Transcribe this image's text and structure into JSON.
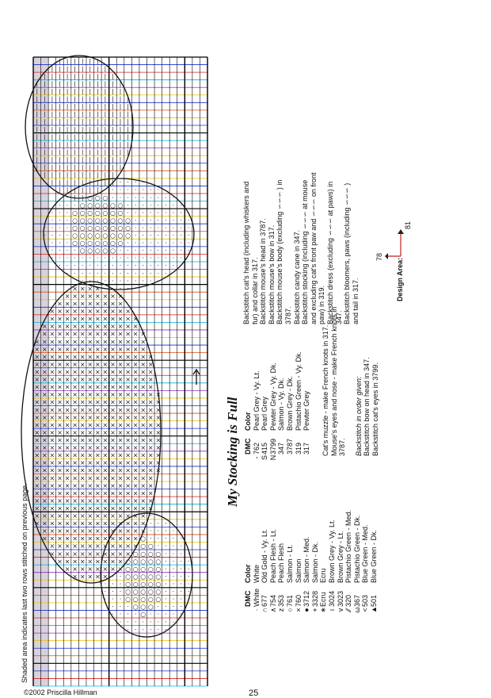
{
  "page_number": "25",
  "copyright": "©2002 Priscilla Hillman",
  "shaded_note": "Shaded area indicates last two rows stitched on previous page.",
  "title": "My Stocking is Full",
  "legend_headers": {
    "dmc": "DMC",
    "color": "Color"
  },
  "legend_left": [
    {
      "sym": "·",
      "dmc": "White",
      "color": "White"
    },
    {
      "sym": "∩",
      "dmc": "677",
      "color": "Old Gold - Vy. Lt."
    },
    {
      "sym": "∧",
      "dmc": "754",
      "color": "Peach Flesh - Lt."
    },
    {
      "sym": "z",
      "dmc": "353",
      "color": "Peach Flesh"
    },
    {
      "sym": "○",
      "dmc": "761",
      "color": "Salmon - Lt."
    },
    {
      "sym": "×",
      "dmc": "760",
      "color": "Salmon"
    },
    {
      "sym": "●",
      "dmc": "3712",
      "color": "Salmon - Med."
    },
    {
      "sym": "+",
      "dmc": "3328",
      "color": "Salmon - Dk."
    },
    {
      "sym": "∗",
      "dmc": "Ecru",
      "color": "Ecru"
    },
    {
      "sym": "ı",
      "dmc": "3024",
      "color": "Brown Grey - Vy. Lt."
    },
    {
      "sym": "v",
      "dmc": "3023",
      "color": "Brown Grey - Lt."
    },
    {
      "sym": "⁄⁄",
      "dmc": "320",
      "color": "Pistachio Green - Med."
    },
    {
      "sym": "ω",
      "dmc": "367",
      "color": "Pistachio Green - Dk."
    },
    {
      "sym": "<",
      "dmc": "503",
      "color": "Blue Green - Med."
    },
    {
      "sym": "▲",
      "dmc": "501",
      "color": "Blue Green - Dk."
    }
  ],
  "legend_right": [
    {
      "sym": "-",
      "dmc": "762",
      "color": "Pearl Grey - Vy. Lt."
    },
    {
      "sym": "S",
      "dmc": "415",
      "color": "Pearl Grey"
    },
    {
      "sym": "N",
      "dmc": "3799",
      "color": "Pewter Grey - Vy. Dk."
    },
    {
      "sym": "",
      "dmc": "347",
      "color": "Salmon - Vy. Dk."
    },
    {
      "sym": "",
      "dmc": "3787",
      "color": "Brown Grey - Dk."
    },
    {
      "sym": "",
      "dmc": "319",
      "color": "Pistachio Green - Vy. Dk."
    },
    {
      "sym": "",
      "dmc": "317",
      "color": "Pewter Grey"
    }
  ],
  "knots_notes": [
    "Cat's muzzle - make French knots in 317.",
    "Mouse's eyes and nose - make French knots in",
    "3787."
  ],
  "backstitch_order": [
    "Backstitch in order given:",
    "Backstitch bow on head in 347.",
    "Backstitch cat's eyes in 3799."
  ],
  "backstitch_lines": [
    "Backstitch cat's head (including whiskers and",
    "fur) and collar in 317.",
    "Backstitch mouse's head in 3787.",
    "Backstitch mouse's bow in 317.",
    "Backstitch mouse's body (excluding ∽∽∽ ) in",
    "3787.",
    "Backstitch candy cane in 347.",
    "Backstitch stocking (including ∽∽∽ at mouse",
    "and excluding cat's front paw and ∽∽∽ on front",
    "paw) in 319.",
    "Backstitch dress (excluding ∽∽∽ at paws) in",
    "347.",
    "Backstitch bloomers, paws (including ∽∽∽ )",
    "and tail in 317."
  ],
  "design_area": {
    "label": "Design Area:",
    "width": "78",
    "height": "81"
  },
  "grid_line_colors": [
    "#f0c000",
    "#1a2fd0",
    "#e02020",
    "#00b4e0",
    "#9030c0",
    "#f0c000",
    "#1a2fd0",
    "#e05010"
  ]
}
